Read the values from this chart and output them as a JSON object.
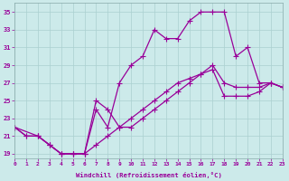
{
  "xlabel": "Windchill (Refroidissement éolien,°C)",
  "bg_color": "#cceaea",
  "line_color": "#990099",
  "xlim": [
    0,
    23
  ],
  "ylim": [
    18.5,
    36.0
  ],
  "xticks": [
    0,
    1,
    2,
    3,
    4,
    5,
    6,
    7,
    8,
    9,
    10,
    11,
    12,
    13,
    14,
    15,
    16,
    17,
    18,
    19,
    20,
    21,
    22,
    23
  ],
  "yticks": [
    19,
    21,
    23,
    25,
    27,
    29,
    31,
    33,
    35
  ],
  "line1_x": [
    0,
    1,
    2,
    3,
    4,
    5,
    6,
    7,
    8,
    9,
    10,
    11,
    12,
    13,
    14,
    15,
    16,
    17,
    18,
    19,
    20,
    21,
    22,
    23
  ],
  "line1_y": [
    22,
    21,
    21,
    20,
    19,
    19,
    19,
    20,
    21,
    22,
    23,
    24,
    25,
    26,
    27,
    27.5,
    28,
    28.5,
    25.5,
    25.5,
    25.5,
    26,
    27,
    26.5
  ],
  "line2_x": [
    0,
    2,
    3,
    4,
    5,
    6,
    7,
    8,
    9,
    10,
    11,
    12,
    13,
    14,
    15,
    16,
    17,
    18,
    19,
    20,
    21,
    22,
    23
  ],
  "line2_y": [
    22,
    21,
    20,
    19,
    19,
    19,
    25,
    24,
    22,
    22,
    23,
    24,
    25,
    26,
    27,
    28,
    29,
    27,
    26.5,
    26.5,
    26.5,
    27,
    26.5
  ],
  "line3_x": [
    0,
    1,
    2,
    3,
    4,
    5,
    6,
    7,
    8,
    9,
    10,
    11,
    12,
    13,
    14,
    15,
    16,
    17,
    18,
    19,
    20,
    21,
    22,
    23
  ],
  "line3_y": [
    22,
    21,
    21,
    20,
    19,
    19,
    19,
    24,
    22,
    27,
    29,
    30,
    33,
    32,
    32,
    34,
    35,
    35,
    35,
    30,
    31,
    27,
    27,
    26.5
  ],
  "grid_color": "#aad0d0",
  "markersize": 2.5,
  "linewidth": 0.9
}
